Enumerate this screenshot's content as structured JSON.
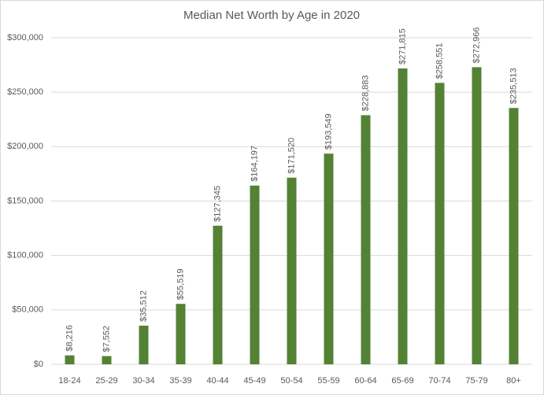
{
  "chart_data": {
    "type": "bar",
    "title": "Median Net Worth by Age in 2020",
    "categories": [
      "18-24",
      "25-29",
      "30-34",
      "35-39",
      "40-44",
      "45-49",
      "50-54",
      "55-59",
      "60-64",
      "65-69",
      "70-74",
      "75-79",
      "80+"
    ],
    "values": [
      8216,
      7552,
      35512,
      55519,
      127345,
      164197,
      171520,
      193549,
      228883,
      271815,
      258551,
      272966,
      235513
    ],
    "value_labels": [
      "$8,216",
      "$7,552",
      "$35,512",
      "$55,519",
      "$127,345",
      "$164,197",
      "$171,520",
      "$193,549",
      "$228,883",
      "$271,815",
      "$258,551",
      "$272,966",
      "$235,513"
    ],
    "color": "#548235",
    "ylim": [
      0,
      300000
    ],
    "yticks": [
      {
        "value": 0,
        "label": "$0"
      },
      {
        "value": 50000,
        "label": "$50,000"
      },
      {
        "value": 100000,
        "label": "$100,000"
      },
      {
        "value": 150000,
        "label": "$150,000"
      },
      {
        "value": 200000,
        "label": "$200,000"
      },
      {
        "value": 250000,
        "label": "$250,000"
      },
      {
        "value": 300000,
        "label": "$300,000"
      }
    ],
    "grid": true
  }
}
